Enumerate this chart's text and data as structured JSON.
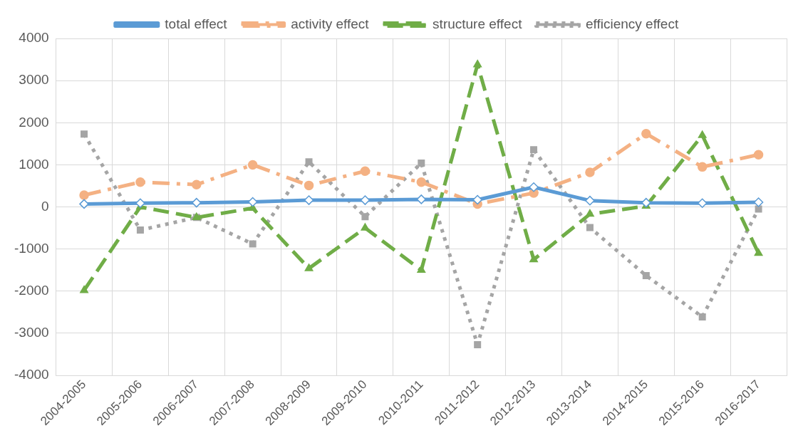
{
  "chart_data": {
    "type": "line",
    "categories": [
      "2004-2005",
      "2005-2006",
      "2006-2007",
      "2007-2008",
      "2008-2009",
      "2009-2010",
      "2010-2011",
      "2011-2012",
      "2012-2013",
      "2013-2014",
      "2014-2015",
      "2015-2016",
      "2016-2017"
    ],
    "series": [
      {
        "name": "total effect",
        "color": "#5b9bd5",
        "marker": "diamond",
        "line_style": "solid",
        "values": [
          70,
          90,
          100,
          120,
          160,
          160,
          180,
          170,
          470,
          150,
          100,
          90,
          110
        ]
      },
      {
        "name": "activity effect",
        "color": "#f4b183",
        "marker": "circle",
        "line_style": "dashdot",
        "values": [
          280,
          590,
          530,
          1000,
          510,
          850,
          590,
          70,
          330,
          820,
          1740,
          950,
          1240
        ]
      },
      {
        "name": "structure effect",
        "color": "#70ad47",
        "marker": "triangle",
        "line_style": "dashed",
        "values": [
          -1980,
          0,
          -250,
          -30,
          -1460,
          -500,
          -1500,
          3380,
          -1250,
          -170,
          20,
          1700,
          -1100
        ]
      },
      {
        "name": "efficiency effect",
        "color": "#a5a5a5",
        "marker": "square",
        "line_style": "dotted",
        "values": [
          1730,
          -550,
          -250,
          -880,
          1070,
          -230,
          1040,
          -3270,
          1360,
          -490,
          -1630,
          -2610,
          -50
        ]
      }
    ],
    "ylim": [
      -4000,
      4000
    ],
    "yticks": [
      -4000,
      -3000,
      -2000,
      -1000,
      0,
      1000,
      2000,
      3000,
      4000
    ],
    "grid": true,
    "legend": "top"
  }
}
